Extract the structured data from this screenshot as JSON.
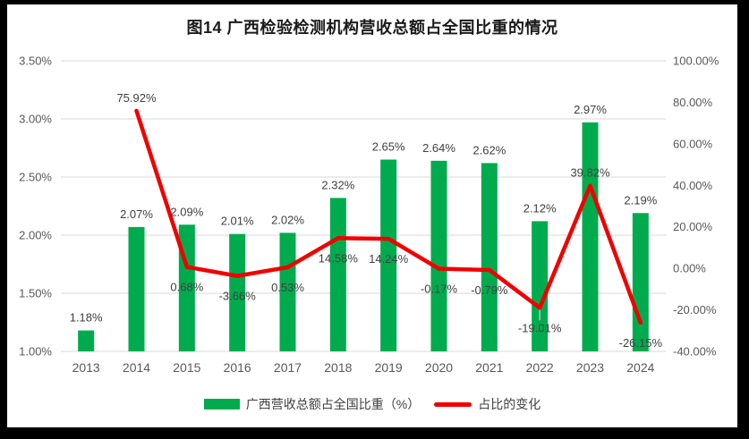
{
  "title": "图14 广西检验检测机构营收总额占全国比重的情况",
  "legend": {
    "bar_label": "广西营收总额占全国比重（%）",
    "line_label": "占比的变化"
  },
  "colors": {
    "bar": "#00AB4E",
    "line": "#F00000",
    "grid": "#D9D9D9",
    "tick_text": "#595959",
    "data_label": "#404040",
    "leader": "#BFBFBF",
    "frame": "#000000",
    "background": "#FFFFFF"
  },
  "chart_data": {
    "type": "bar",
    "combo": "bar+line dual-axis",
    "title": "图14 广西检验检测机构营收总额占全国比重的情况",
    "categories": [
      "2013",
      "2014",
      "2015",
      "2016",
      "2017",
      "2018",
      "2019",
      "2020",
      "2021",
      "2022",
      "2023",
      "2024"
    ],
    "series": [
      {
        "name": "广西营收总额占全国比重（%）",
        "type": "bar",
        "axis": "left",
        "color": "#00AB4E",
        "values": [
          1.18,
          2.07,
          2.09,
          2.01,
          2.02,
          2.32,
          2.65,
          2.64,
          2.62,
          2.12,
          2.97,
          2.19
        ],
        "labels": [
          "1.18%",
          "2.07%",
          "2.09%",
          "2.01%",
          "2.02%",
          "2.32%",
          "2.65%",
          "2.64%",
          "2.62%",
          "2.12%",
          "2.97%",
          "2.19%"
        ]
      },
      {
        "name": "占比的变化",
        "type": "line",
        "axis": "right",
        "color": "#F00000",
        "values": [
          null,
          75.92,
          0.68,
          -3.66,
          0.53,
          14.58,
          14.24,
          -0.17,
          -0.79,
          -19.01,
          39.82,
          -26.15
        ],
        "labels": [
          null,
          "75.92%",
          "0.68%",
          "-3.66%",
          "0.53%",
          "14.58%",
          "14.24%",
          "-0.17%",
          "-0.79%",
          "-19.01%",
          "39.82%",
          "-26.15%"
        ],
        "label_above": [
          false,
          true,
          false,
          false,
          false,
          false,
          false,
          false,
          false,
          false,
          true,
          false
        ],
        "leader_tick_category": "2022"
      }
    ],
    "left_axis": {
      "min": 1.0,
      "max": 3.5,
      "ticks": [
        "3.50%",
        "3.00%",
        "2.50%",
        "2.00%",
        "1.50%",
        "1.00%"
      ],
      "tick_values": [
        3.5,
        3.0,
        2.5,
        2.0,
        1.5,
        1.0
      ]
    },
    "right_axis": {
      "min": -40,
      "max": 100,
      "ticks": [
        "100.00%",
        "80.00%",
        "60.00%",
        "40.00%",
        "20.00%",
        "0.00%",
        "-20.00%",
        "-40.00%"
      ],
      "tick_values": [
        100,
        80,
        60,
        40,
        20,
        0,
        -20,
        -40
      ]
    },
    "x_axis": {
      "labels": [
        "2013",
        "2014",
        "2015",
        "2016",
        "2017",
        "2018",
        "2019",
        "2020",
        "2021",
        "2022",
        "2023",
        "2024"
      ]
    },
    "grid": true,
    "legend_position": "bottom"
  }
}
